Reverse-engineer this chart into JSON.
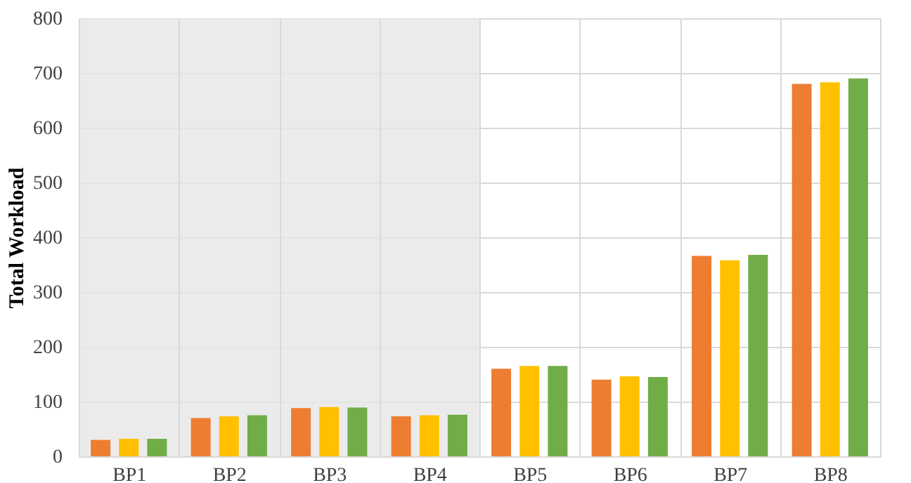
{
  "chart_data": {
    "type": "bar",
    "ylabel": "Total Workload",
    "categories": [
      "BP1",
      "BP2",
      "BP3",
      "BP4",
      "BP5",
      "BP6",
      "BP7",
      "BP8"
    ],
    "series": [
      {
        "color": "#ed7d31",
        "values": [
          30,
          70,
          88,
          73,
          160,
          140,
          366,
          680
        ]
      },
      {
        "color": "#ffc000",
        "values": [
          32,
          73,
          90,
          75,
          165,
          146,
          358,
          683
        ]
      },
      {
        "color": "#70ad47",
        "values": [
          32,
          75,
          89,
          76,
          165,
          145,
          368,
          690
        ]
      }
    ],
    "ylim": [
      0,
      800
    ],
    "yticks": [
      0,
      100,
      200,
      300,
      400,
      500,
      600,
      700,
      800
    ],
    "grid": true,
    "legend": false,
    "bands": [
      {
        "axis": "x",
        "from": "BP1",
        "to": "BP4",
        "color": "#e6e6e6"
      }
    ]
  }
}
